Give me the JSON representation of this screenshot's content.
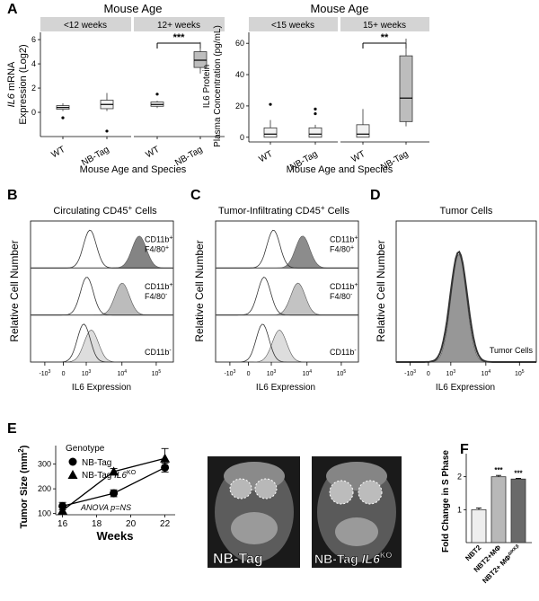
{
  "panel_letters": {
    "A": "A",
    "B": "B",
    "C": "C",
    "D": "D",
    "E": "E",
    "F": "F"
  },
  "mri": {
    "left_label": "NB-Tag",
    "right_label": "NB-Tag ",
    "right_sup": "KO",
    "right_italic": "IL6"
  },
  "chart_data": [
    {
      "id": "A1",
      "type": "box",
      "title": "Mouse Age",
      "ylabel_italic": "IL6",
      "ylabel_line1_rest": " mRNA",
      "ylabel_line2": "Expression (Log2)",
      "xlabel": "Mouse Age and Species",
      "facets": [
        {
          "label": "<12 weeks",
          "groups": [
            {
              "name": "WT",
              "q1": 0.25,
              "median": 0.4,
              "q3": 0.55,
              "whisker_low": 0.1,
              "whisker_high": 0.75,
              "outliers": [
                -0.45
              ]
            },
            {
              "name": "NB-Tag",
              "q1": 0.3,
              "median": 0.65,
              "q3": 1.0,
              "whisker_low": 0.1,
              "whisker_high": 1.6,
              "outliers": [
                -1.55
              ]
            }
          ]
        },
        {
          "label": "12+ weeks",
          "groups": [
            {
              "name": "WT",
              "q1": 0.5,
              "median": 0.65,
              "q3": 0.85,
              "whisker_low": 0.35,
              "whisker_high": 0.95,
              "outliers": [
                1.5
              ]
            },
            {
              "name": "NB-Tag",
              "q1": 3.7,
              "median": 4.3,
              "q3": 5.0,
              "whisker_low": 3.2,
              "whisker_high": 5.8,
              "outliers": []
            }
          ],
          "significance": "***"
        }
      ],
      "ylim": [
        -2,
        6.6
      ],
      "yticks": [
        0,
        2,
        4,
        6
      ]
    },
    {
      "id": "A2",
      "type": "box",
      "title": "Mouse Age",
      "ylabel_line1": "IL6 Protein",
      "ylabel_line2": "Plasma Concentration (pg/mL)",
      "xlabel": "Mouse Age and Species",
      "facets": [
        {
          "label": "<15 weeks",
          "groups": [
            {
              "name": "WT",
              "q1": 0,
              "median": 2,
              "q3": 6,
              "whisker_low": 0,
              "whisker_high": 11,
              "outliers": [
                21
              ]
            },
            {
              "name": "NB-Tag",
              "q1": 0,
              "median": 2,
              "q3": 6,
              "whisker_low": 0,
              "whisker_high": 8,
              "outliers": [
                15,
                18
              ]
            }
          ]
        },
        {
          "label": "15+ weeks",
          "groups": [
            {
              "name": "WT",
              "q1": 0,
              "median": 2,
              "q3": 8,
              "whisker_low": 0,
              "whisker_high": 18,
              "outliers": []
            },
            {
              "name": "NB-Tag",
              "q1": 10,
              "median": 25,
              "q3": 52,
              "whisker_low": 7,
              "whisker_high": 63,
              "outliers": []
            }
          ],
          "significance": "**"
        }
      ],
      "ylim": [
        -3,
        67
      ],
      "yticks": [
        0,
        20,
        40,
        60
      ]
    },
    {
      "id": "B",
      "type": "histogram-overlay",
      "title": "Circulating CD45",
      "title_sup": "+",
      "title_rest": " Cells",
      "ylabel": "Relative Cell Number",
      "xlabel": "IL6 Expression",
      "xticks": [
        {
          "base": "-10",
          "exp": "3"
        },
        {
          "base": "0",
          "exp": ""
        },
        {
          "base": "10",
          "exp": "3"
        },
        {
          "base": "10",
          "exp": "4"
        },
        {
          "base": "10",
          "exp": "5"
        }
      ],
      "rows": [
        {
          "label1": "CD11b",
          "label1_sup": "+",
          "label2": "F4/80",
          "label2_sup": "+",
          "peak_open": 0.95,
          "peak_filled": 2.45,
          "filled_shade": "#777777"
        },
        {
          "label1": "CD11b",
          "label1_sup": "+",
          "label2": "F4/80",
          "label2_sup": "-",
          "peak_open": 0.85,
          "peak_filled": 1.9,
          "filled_shade": "#b5b5b5"
        },
        {
          "label1": "CD11b",
          "label1_sup": "-",
          "label2": "",
          "label2_sup": "",
          "peak_open": 0.75,
          "peak_filled": 0.9,
          "filled_shade": "#d9d9d9"
        }
      ]
    },
    {
      "id": "C",
      "type": "histogram-overlay",
      "title": "Tumor-Infiltrating CD45",
      "title_sup": "+",
      "title_rest": " Cells",
      "ylabel": "Relative Cell Number",
      "xlabel": "IL6 Expression",
      "xticks": [
        {
          "base": "-10",
          "exp": "3"
        },
        {
          "base": "0",
          "exp": ""
        },
        {
          "base": "10",
          "exp": "3"
        },
        {
          "base": "10",
          "exp": "4"
        },
        {
          "base": "10",
          "exp": "5"
        }
      ],
      "rows": [
        {
          "label1": "CD11b",
          "label1_sup": "+",
          "label2": "F4/80",
          "label2_sup": "+",
          "peak_open": 0.9,
          "peak_filled": 1.75,
          "filled_shade": "#808080"
        },
        {
          "label1": "CD11b",
          "label1_sup": "+",
          "label2": "F4/80",
          "label2_sup": "-",
          "peak_open": 0.6,
          "peak_filled": 1.6,
          "filled_shade": "#bdbdbd"
        },
        {
          "label1": "CD11b",
          "label1_sup": "-",
          "label2": "",
          "label2_sup": "",
          "peak_open": 0.55,
          "peak_filled": 1.0,
          "filled_shade": "#d9d9d9"
        }
      ]
    },
    {
      "id": "D",
      "type": "histogram-overlay",
      "title": "Tumor Cells",
      "ylabel": "Relative Cell Number",
      "xlabel": "IL6 Expression",
      "xticks": [
        {
          "base": "-10",
          "exp": "3"
        },
        {
          "base": "0",
          "exp": ""
        },
        {
          "base": "10",
          "exp": "3"
        },
        {
          "base": "10",
          "exp": "4"
        },
        {
          "base": "10",
          "exp": "5"
        }
      ],
      "rows": [
        {
          "label1": "Tumor Cells",
          "peak_open": 1.0,
          "peak_filled": 1.0,
          "filled_shade": "#8c8c8c"
        }
      ]
    },
    {
      "id": "E",
      "type": "line",
      "ylabel": "Tumor Size (mm",
      "ylabel_sup": "2",
      "ylabel_close": ")",
      "xlabel": "Weeks",
      "legend_title": "Genotype",
      "annotation": "ANOVA p=NS",
      "x": [
        16,
        19,
        22
      ],
      "xticks": [
        16,
        18,
        20,
        22
      ],
      "yticks": [
        100,
        200,
        300
      ],
      "xlim": [
        15.6,
        22.6
      ],
      "ylim": [
        95,
        375
      ],
      "series": [
        {
          "name": "NB-Tag",
          "marker": "circle",
          "values": [
            130,
            182,
            286
          ],
          "errors": [
            15,
            14,
            18
          ]
        },
        {
          "name": "NB-Tag ",
          "name_italic": "IL6",
          "name_sup": "KO",
          "marker": "triangle",
          "values": [
            112,
            270,
            323
          ],
          "errors": [
            12,
            12,
            40
          ]
        }
      ]
    },
    {
      "id": "F",
      "type": "bar",
      "ylabel": "Fold Change in S Phase",
      "categories": [
        "NBT2",
        "NBT2+MΦ",
        "NBT2+ MΦ"
      ],
      "category_sup": [
        "",
        "",
        "ΔIKKβ"
      ],
      "values": [
        1.0,
        2.0,
        1.93
      ],
      "errors": [
        0.05,
        0.04,
        0.02
      ],
      "significance": [
        "",
        "***",
        "***"
      ],
      "colors": [
        "#eeeeee",
        "#b8b8b8",
        "#6a6a6a"
      ],
      "ylim": [
        0,
        2.7
      ],
      "yticks": [
        1,
        2
      ]
    }
  ]
}
